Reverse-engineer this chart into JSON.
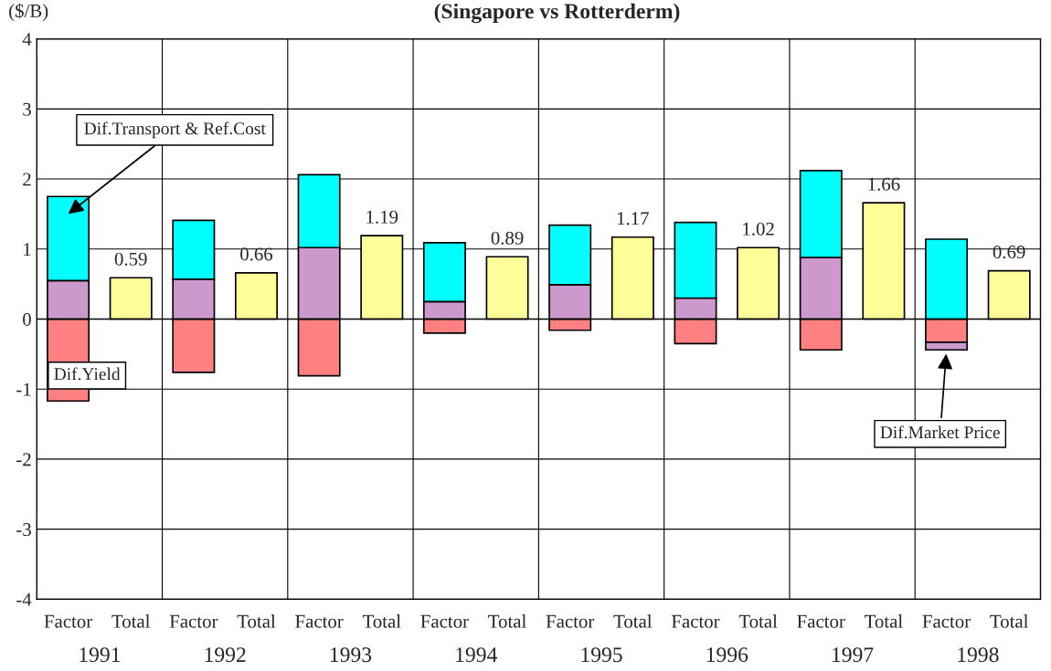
{
  "chart_data": {
    "type": "bar",
    "title": "(Singapore vs Rotterderm)",
    "ylabel": "($/B)",
    "categories": [
      "Factor",
      "Total",
      "Factor",
      "Total",
      "Factor",
      "Total",
      "Factor",
      "Total",
      "Factor",
      "Total",
      "Factor",
      "Total",
      "Factor",
      "Total",
      "Factor",
      "Total"
    ],
    "stacked": true,
    "series": [
      {
        "name": "Dif.Yield",
        "color": "#ff8080",
        "values": [
          -1.17,
          null,
          -0.76,
          null,
          -0.81,
          null,
          -0.2,
          null,
          -0.16,
          null,
          -0.35,
          null,
          -0.44,
          null,
          -0.33,
          null
        ]
      },
      {
        "name": "Dif.Market Price",
        "color": "#cc99cc",
        "values": [
          0.55,
          null,
          0.57,
          null,
          1.02,
          null,
          0.25,
          null,
          0.49,
          null,
          0.3,
          null,
          0.88,
          null,
          -0.11,
          null
        ]
      },
      {
        "name": "Dif.Transport & Ref.Cost",
        "color": "#00ffff",
        "values": [
          1.2,
          null,
          0.84,
          null,
          1.04,
          null,
          0.84,
          null,
          0.85,
          null,
          1.08,
          null,
          1.24,
          null,
          1.14,
          null
        ]
      },
      {
        "color": "#ffff99",
        "values": [
          null,
          0.59,
          null,
          0.66,
          null,
          1.19,
          null,
          0.89,
          null,
          1.17,
          null,
          1.02,
          null,
          1.66,
          null,
          0.69
        ],
        "value_labels": [
          null,
          "0.59",
          null,
          "0.66",
          null,
          "1.19",
          null,
          "0.89",
          null,
          "1.17",
          null,
          "1.02",
          null,
          "1.66",
          null,
          "0.69"
        ]
      }
    ],
    "annotations": [
      "1991",
      "1992",
      "1993",
      "1994",
      "1995",
      "1996",
      "1997",
      "1998"
    ],
    "ylim": [
      -4,
      4
    ],
    "yticks": [
      -4,
      -3,
      -2,
      -1,
      0,
      1,
      2,
      3,
      4
    ],
    "grid": true,
    "legend": false
  }
}
